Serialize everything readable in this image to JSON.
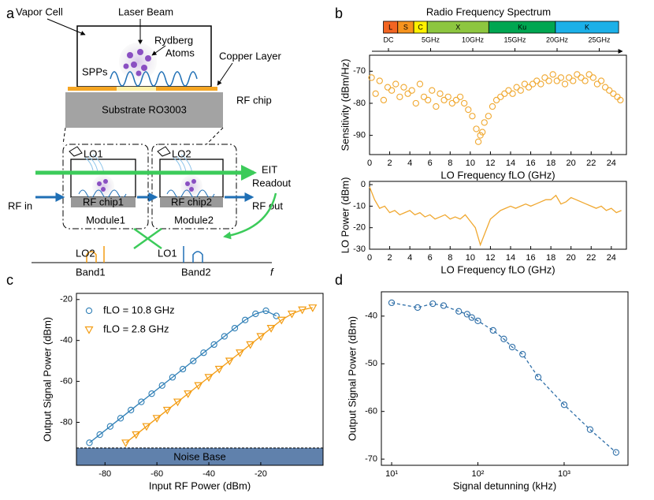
{
  "panel_labels": [
    "a",
    "b",
    "c",
    "d"
  ],
  "diagram": {
    "vapor_cell": "Vapor Cell",
    "laser_beam": "Laser Beam",
    "rydberg": "Rydberg",
    "atoms": "Atoms",
    "spps": "SPPs",
    "copper_layer": "Copper Layer",
    "rf_chip": "RF chip",
    "substrate": "Substrate RO3003",
    "lo1_top": "LO1",
    "lo2_top": "LO2",
    "eit": "EIT",
    "readout": "Readout",
    "rf_in": "RF in",
    "rf_chip1": "RF chip1",
    "rf_chip2": "RF chip2",
    "rf_out": "RF out",
    "module1": "Module1",
    "module2": "Module2",
    "lo2_bottom": "LO2",
    "lo1_bottom": "LO1",
    "band1": "Band1",
    "band2": "Band2",
    "f": "f"
  },
  "chart_data": [
    {
      "type": "scatter",
      "spectrum": {
        "title": "Radio  Frequency Spectrum",
        "bands": [
          "L",
          "S",
          "C",
          "X",
          "Ku",
          "K"
        ],
        "colors": [
          "#f26522",
          "#f7941d",
          "#fff200",
          "#8dc63f",
          "#00a651",
          "#1cb0e8"
        ],
        "edges": [
          -0.6,
          1.1,
          3.0,
          4.6,
          11.9,
          19.8,
          27.3
        ],
        "ticks": [
          {
            "value": 0,
            "label": "DC"
          },
          {
            "value": 5,
            "label": "5GHz"
          },
          {
            "value": 10,
            "label": "10GHz"
          },
          {
            "value": 15,
            "label": "15GHz"
          },
          {
            "value": 20,
            "label": "20GHz"
          },
          {
            "value": 25,
            "label": "25GHz"
          }
        ]
      },
      "xlabel": "LO Frequency fLO (GHz)",
      "ylabel": "Sensitivity (dBm/Hz)",
      "color": "#f0a830",
      "marker": "o",
      "x": [
        0.2,
        0.6,
        1.0,
        1.4,
        1.8,
        2.2,
        2.6,
        3.0,
        3.4,
        3.8,
        4.2,
        4.6,
        5.0,
        5.4,
        5.8,
        6.2,
        6.6,
        7.0,
        7.4,
        7.8,
        8.2,
        8.6,
        9.0,
        9.4,
        9.8,
        10.2,
        10.6,
        10.8,
        11.0,
        11.2,
        11.4,
        11.8,
        12.2,
        12.6,
        13.0,
        13.4,
        13.8,
        14.2,
        14.6,
        15.0,
        15.4,
        15.8,
        16.2,
        16.6,
        17.0,
        17.4,
        17.8,
        18.2,
        18.6,
        19.0,
        19.4,
        19.8,
        20.2,
        20.6,
        21.0,
        21.4,
        21.8,
        22.2,
        22.6,
        23.0,
        23.4,
        23.8,
        24.2,
        24.6,
        24.9
      ],
      "values": [
        -72,
        -77,
        -73,
        -79,
        -75,
        -76,
        -74,
        -78,
        -75,
        -77,
        -76,
        -80,
        -74,
        -78,
        -79,
        -76,
        -81,
        -77,
        -79,
        -78,
        -80,
        -79,
        -78,
        -80,
        -82,
        -84,
        -88,
        -92,
        -90,
        -89,
        -86,
        -84,
        -81,
        -79,
        -78,
        -77,
        -76,
        -77,
        -75,
        -76,
        -74,
        -75,
        -74,
        -73,
        -74,
        -72,
        -73,
        -71,
        -73,
        -72,
        -74,
        -72,
        -73,
        -71,
        -72,
        -73,
        -71,
        -72,
        -74,
        -73,
        -75,
        -76,
        -77,
        -78,
        -79
      ],
      "xlim": [
        0,
        25.5
      ],
      "xticks": [
        0,
        2,
        4,
        6,
        8,
        10,
        12,
        14,
        16,
        18,
        20,
        22,
        24
      ],
      "ylim": [
        -96,
        -65
      ],
      "yticks": [
        -90,
        -80,
        -70
      ]
    },
    {
      "type": "line",
      "xlabel": "LO Frequency fLO (GHz)",
      "ylabel": "LO Power (dBm)",
      "color": "#f0a830",
      "x": [
        0,
        0.5,
        1,
        1.5,
        2,
        2.5,
        3,
        3.5,
        4,
        4.5,
        5,
        5.5,
        6,
        6.5,
        7,
        7.5,
        8,
        8.5,
        9,
        9.5,
        10,
        10.5,
        11,
        11.5,
        12,
        12.5,
        13,
        13.5,
        14,
        14.5,
        15,
        15.5,
        16,
        16.5,
        17,
        17.5,
        18,
        18.5,
        19,
        19.5,
        20,
        20.5,
        21,
        21.5,
        22,
        22.5,
        23,
        23.5,
        24,
        24.5,
        25
      ],
      "values": [
        -1,
        -7,
        -11,
        -10,
        -13,
        -12,
        -14,
        -13,
        -12,
        -14,
        -13,
        -15,
        -14,
        -16,
        -15,
        -14,
        -16,
        -15,
        -16,
        -14,
        -17,
        -20,
        -28,
        -22,
        -16,
        -14,
        -12,
        -11,
        -10,
        -11,
        -10,
        -9,
        -10,
        -9,
        -8,
        -7,
        -7,
        -5,
        -9,
        -8,
        -6,
        -7,
        -8,
        -9,
        -10,
        -11,
        -10,
        -12,
        -11,
        -13,
        -12
      ],
      "xlim": [
        0,
        25.5
      ],
      "xticks": [
        0,
        2,
        4,
        6,
        8,
        10,
        12,
        14,
        16,
        18,
        20,
        22,
        24
      ],
      "ylim": [
        -30,
        1.5
      ],
      "yticks": [
        0,
        -10,
        -20,
        -30
      ]
    },
    {
      "type": "line",
      "xlabel": "Input RF Power (dBm)",
      "ylabel": "Output Signal Power (dBm)",
      "legend": "upper left",
      "noise_base": {
        "label": "Noise Base",
        "value": -92.5,
        "color": "#4f73a3"
      },
      "series": [
        {
          "name": "fLO = 10.8 GHz",
          "color": "#2f7fb6",
          "marker": "o",
          "x": [
            -86,
            -82,
            -78,
            -74,
            -70,
            -66,
            -62,
            -58,
            -54,
            -50,
            -46,
            -42,
            -38,
            -34,
            -30,
            -26,
            -22,
            -18,
            -14
          ],
          "values": [
            -90,
            -86,
            -82,
            -78,
            -74,
            -70,
            -66,
            -62,
            -58,
            -54,
            -50,
            -46,
            -42,
            -38,
            -34,
            -30,
            -27,
            -25.5,
            -28
          ]
        },
        {
          "name": "fLO = 2.8 GHz",
          "color": "#f39c12",
          "marker": "v",
          "x": [
            -72,
            -68,
            -64,
            -60,
            -56,
            -52,
            -48,
            -44,
            -40,
            -36,
            -32,
            -28,
            -24,
            -20,
            -16,
            -12,
            -8,
            -4,
            0
          ],
          "values": [
            -90,
            -86,
            -82,
            -78,
            -74,
            -70,
            -66,
            -62,
            -58,
            -54,
            -50,
            -46,
            -42,
            -38,
            -34,
            -30,
            -27,
            -25,
            -24
          ]
        }
      ],
      "xlim": [
        -91,
        4
      ],
      "xticks": [
        -80,
        -60,
        -40,
        -20
      ],
      "ylim": [
        -101,
        -17
      ],
      "yticks": [
        -80,
        -60,
        -40,
        -20
      ]
    },
    {
      "type": "line",
      "xlabel": "Signal detunning (kHz)",
      "ylabel": "Output Signal Power (dBm)",
      "log_x": true,
      "color": "#2f6fa8",
      "marker": "o",
      "linestyle": "dashed",
      "x": [
        10,
        20,
        30,
        40,
        60,
        75,
        85,
        100,
        150,
        200,
        250,
        330,
        500,
        1000,
        2000,
        4000
      ],
      "values": [
        -37.2,
        -38.2,
        -37.4,
        -37.8,
        -39.0,
        -39.6,
        -40.3,
        -41.0,
        -43.0,
        -44.8,
        -46.5,
        -48.0,
        -52.8,
        -58.6,
        -63.8,
        -68.6
      ],
      "xlim": [
        7.6,
        5500
      ],
      "xticks": [
        {
          "value": 10,
          "label": "10¹"
        },
        {
          "value": 100,
          "label": "10²"
        },
        {
          "value": 1000,
          "label": "10³"
        }
      ],
      "ylim": [
        -71.3,
        -34.9
      ],
      "yticks": [
        -70,
        -60,
        -50,
        -40
      ]
    }
  ]
}
